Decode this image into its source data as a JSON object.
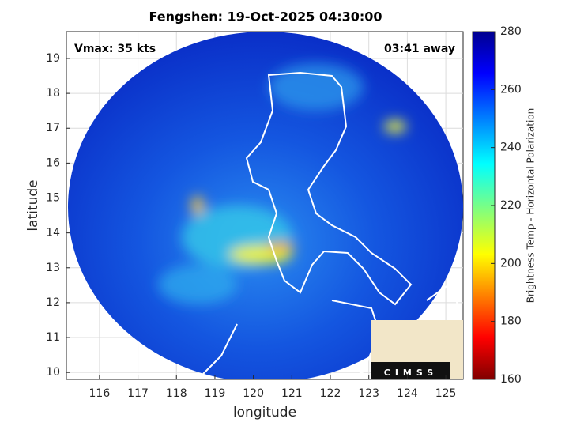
{
  "map": {
    "title": "Fengshen: 19-Oct-2025 04:30:00",
    "annotations": {
      "vmax": "Vmax: 35 kts",
      "away": "03:41 away"
    },
    "xlabel": "longitude",
    "ylabel": "latitude",
    "xlim": [
      115.14,
      125.45
    ],
    "ylim": [
      9.8,
      19.77
    ],
    "xticks": [
      116,
      117,
      118,
      119,
      120,
      121,
      122,
      123,
      124,
      125
    ],
    "yticks": [
      10,
      11,
      12,
      13,
      14,
      15,
      16,
      17,
      18,
      19
    ],
    "colorbar": {
      "label": "Brightness Temp - Horizontal Polarization",
      "lim": [
        160,
        280
      ],
      "ticks": [
        160,
        180,
        200,
        220,
        240,
        260,
        280
      ]
    },
    "logo": "CIMSS"
  }
}
